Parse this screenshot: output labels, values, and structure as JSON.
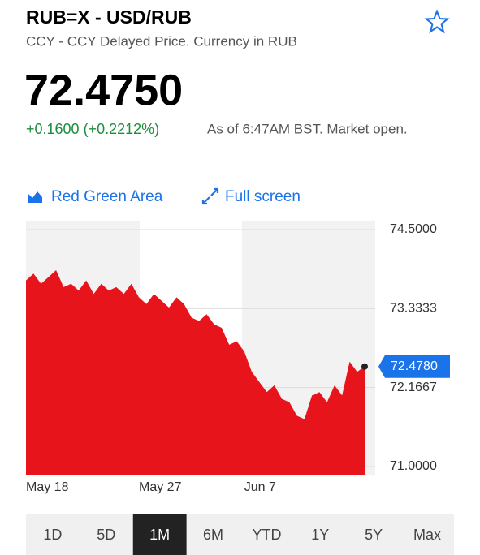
{
  "header": {
    "title": "RUB=X - USD/RUB",
    "subtitle": "CCY - CCY Delayed Price. Currency in RUB",
    "price": "72.4750",
    "change": "+0.1600 (+0.2212%)",
    "as_of": "As of 6:47AM BST. Market open."
  },
  "toolbar": {
    "chart_type": "Red Green Area",
    "full_screen": "Full screen"
  },
  "chart_data": {
    "type": "area",
    "color": "#e8141c",
    "values": [
      73.75,
      73.85,
      73.7,
      73.8,
      73.9,
      73.65,
      73.7,
      73.6,
      73.75,
      73.55,
      73.7,
      73.6,
      73.65,
      73.55,
      73.7,
      73.5,
      73.4,
      73.55,
      73.45,
      73.35,
      73.5,
      73.4,
      73.2,
      73.15,
      73.25,
      73.1,
      73.05,
      72.8,
      72.85,
      72.7,
      72.4,
      72.25,
      72.1,
      72.2,
      72.0,
      71.95,
      71.75,
      71.7,
      72.05,
      72.1,
      71.95,
      72.2,
      72.05,
      72.55,
      72.4,
      72.478
    ],
    "current": {
      "value": 72.478,
      "label": "72.4780"
    },
    "ylim": [
      71,
      74.5
    ],
    "yticks": [
      {
        "value": 74.5,
        "label": "74.5000"
      },
      {
        "value": 73.3333,
        "label": "73.3333"
      },
      {
        "value": 72.1667,
        "label": "72.1667"
      },
      {
        "value": 71,
        "label": "71.0000"
      }
    ],
    "xticks": [
      {
        "value": 0,
        "label": "May 18"
      },
      {
        "value": 15,
        "label": "May 27"
      },
      {
        "value": 29,
        "label": "Jun 7"
      }
    ],
    "grid": true
  },
  "tabs": [
    "1D",
    "5D",
    "1M",
    "6M",
    "YTD",
    "1Y",
    "5Y",
    "Max"
  ],
  "selected_tab": 2
}
